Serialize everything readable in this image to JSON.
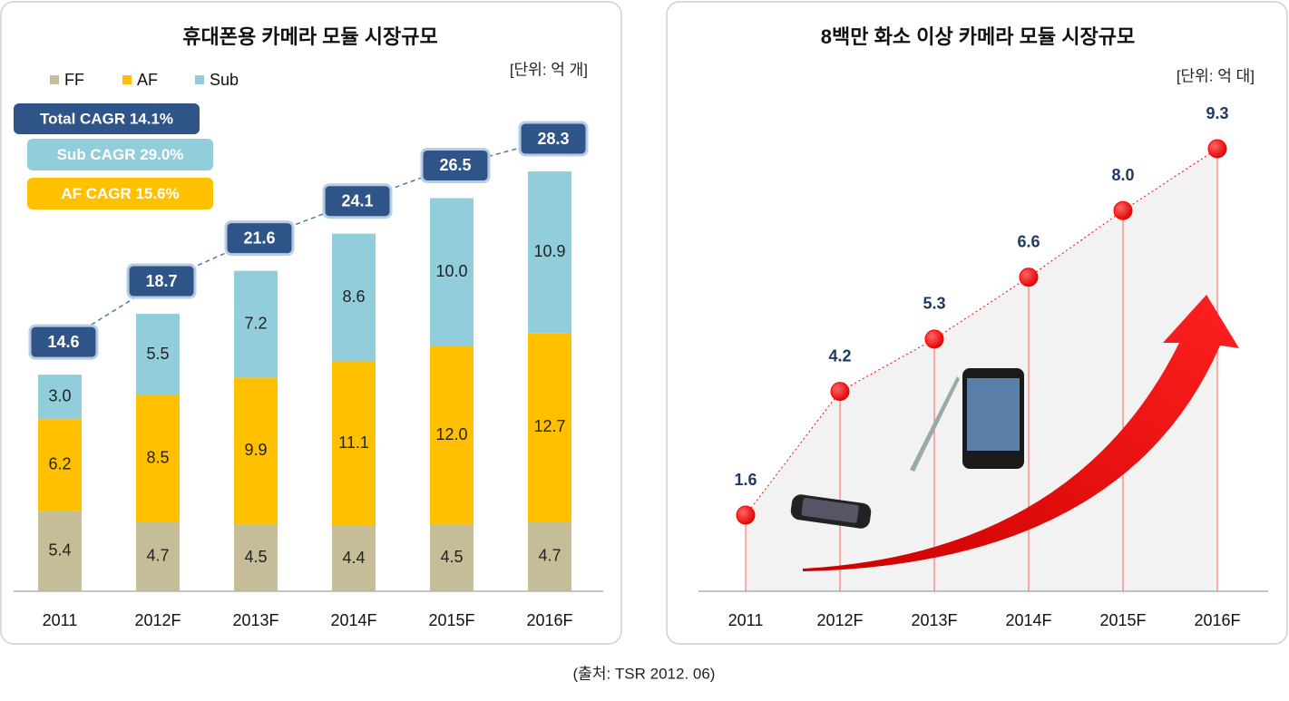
{
  "chart_data": [
    {
      "type": "stacked-bar",
      "title": "휴대폰용 카메라 모듈 시장규모",
      "unit_label": "[단위: 억 개]",
      "categories": [
        "2011",
        "2012F",
        "2013F",
        "2014F",
        "2015F",
        "2016F"
      ],
      "series": [
        {
          "name": "FF",
          "color": "#c4bd97",
          "values": [
            5.4,
            4.7,
            4.5,
            4.4,
            4.5,
            4.7
          ],
          "value_labels": [
            "5.4",
            "4.7",
            "4.5",
            "4.4",
            "4.5",
            "4.7"
          ]
        },
        {
          "name": "AF",
          "color": "#ffc000",
          "values": [
            6.2,
            8.5,
            9.9,
            11.1,
            12.0,
            12.7
          ],
          "value_labels": [
            "6.2",
            "8.5",
            "9.9",
            "11.1",
            "12.0",
            "12.7"
          ]
        },
        {
          "name": "Sub",
          "color": "#92cddc",
          "values": [
            3.0,
            5.5,
            7.2,
            8.6,
            10.0,
            10.9
          ],
          "value_labels": [
            "3.0",
            "5.5",
            "7.2",
            "8.6",
            "10.0",
            "10.9"
          ]
        }
      ],
      "totals": [
        14.6,
        18.7,
        21.6,
        24.1,
        26.5,
        28.3
      ],
      "annotations": [
        "Total CAGR 14.1%",
        "Sub CAGR 29.0%",
        "AF CAGR 15.6%"
      ],
      "legend": "top-left"
    },
    {
      "type": "line",
      "title": "8백만 화소 이상 카메라 모듈 시장규모",
      "unit_label": "[단위: 억 대]",
      "categories": [
        "2011",
        "2012F",
        "2013F",
        "2014F",
        "2015F",
        "2016F"
      ],
      "values": [
        1.6,
        4.2,
        5.3,
        6.6,
        8.0,
        9.3
      ],
      "value_labels": [
        "1.6",
        "4.2",
        "5.3",
        "6.6",
        "8.0",
        "9.3"
      ],
      "color": "#ff0000"
    }
  ],
  "source": "(출처: TSR 2012. 06)"
}
